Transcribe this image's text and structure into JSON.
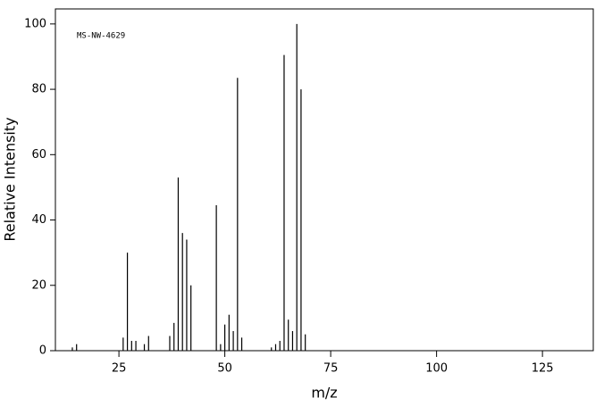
{
  "chart_data": {
    "type": "stem",
    "annotation": "MS-NW-4629",
    "x_label": "m/z",
    "y_label": "Relative Intensity",
    "color": "#000000",
    "x": [
      14,
      15,
      26,
      27,
      28,
      29,
      31,
      32,
      37,
      38,
      39,
      40,
      41,
      42,
      48,
      49,
      50,
      51,
      52,
      53,
      54,
      61,
      62,
      63,
      64,
      65,
      66,
      67,
      68,
      69
    ],
    "values": [
      1,
      2,
      4,
      30,
      3,
      3,
      2,
      4.5,
      4.5,
      8.5,
      53,
      36,
      34,
      20,
      44.5,
      2,
      8,
      11,
      6,
      83.5,
      4,
      1,
      2,
      3,
      90.5,
      9.5,
      6,
      100,
      80,
      5
    ],
    "xlim": [
      10,
      137
    ],
    "ylim": [
      0,
      104.6
    ],
    "xticks": [
      25,
      50,
      75,
      100,
      125
    ],
    "yticks": [
      0,
      20,
      40,
      60,
      80,
      100
    ]
  }
}
